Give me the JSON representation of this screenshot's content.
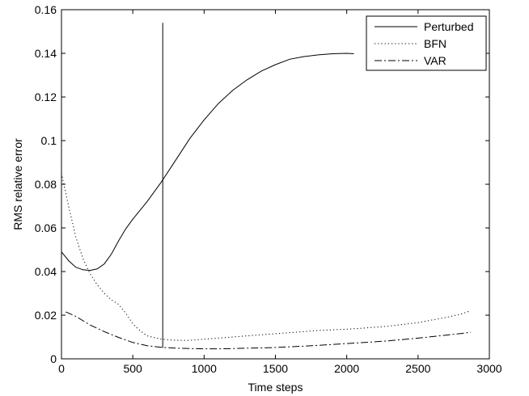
{
  "chart_data": {
    "type": "line",
    "xlabel": "Time steps",
    "ylabel": "RMS relative error",
    "xlim": [
      0,
      3000
    ],
    "ylim": [
      0,
      0.16
    ],
    "x_ticks": [
      0,
      500,
      1000,
      1500,
      2000,
      2500,
      3000
    ],
    "y_ticks": [
      0,
      0.02,
      0.04,
      0.06,
      0.08,
      0.1,
      0.12,
      0.14,
      0.16
    ],
    "x_tick_labels": [
      "0",
      "500",
      "1000",
      "1500",
      "2000",
      "2500",
      "3000"
    ],
    "y_tick_labels": [
      "0",
      "0.02",
      "0.04",
      "0.06",
      "0.08",
      "0.1",
      "0.12",
      "0.14",
      "0.16"
    ],
    "grid": false,
    "legend_position": "top-right",
    "series": [
      {
        "name": "Perturbed",
        "style": "solid",
        "color": "#000000",
        "x": [
          0,
          50,
          100,
          150,
          200,
          250,
          300,
          350,
          400,
          450,
          500,
          600,
          700,
          800,
          900,
          1000,
          1100,
          1200,
          1300,
          1400,
          1500,
          1600,
          1700,
          1800,
          1900,
          2000,
          2050
        ],
        "y": [
          0.049,
          0.045,
          0.042,
          0.0408,
          0.0405,
          0.0412,
          0.0435,
          0.048,
          0.054,
          0.0595,
          0.064,
          0.072,
          0.081,
          0.091,
          0.101,
          0.1095,
          0.117,
          0.123,
          0.1278,
          0.1318,
          0.1348,
          0.1373,
          0.1385,
          0.1393,
          0.1398,
          0.14,
          0.1398
        ]
      },
      {
        "name": "BFN",
        "style": "dotted",
        "color": "#000000",
        "x": [
          0,
          50,
          100,
          150,
          200,
          250,
          300,
          350,
          400,
          450,
          500,
          550,
          600,
          700,
          800,
          900,
          1000,
          1100,
          1200,
          1300,
          1400,
          1500,
          1600,
          1700,
          1800,
          1900,
          2000,
          2100,
          2200,
          2300,
          2400,
          2500,
          2600,
          2700,
          2800,
          2870
        ],
        "y": [
          0.085,
          0.07,
          0.056,
          0.046,
          0.039,
          0.034,
          0.03,
          0.027,
          0.025,
          0.021,
          0.016,
          0.013,
          0.0105,
          0.009,
          0.0085,
          0.0085,
          0.009,
          0.0095,
          0.01,
          0.0105,
          0.011,
          0.0115,
          0.012,
          0.0125,
          0.013,
          0.0133,
          0.0136,
          0.014,
          0.0145,
          0.015,
          0.0158,
          0.0166,
          0.0178,
          0.019,
          0.0205,
          0.022
        ]
      },
      {
        "name": "VAR",
        "style": "dashdot",
        "color": "#000000",
        "x": [
          30,
          100,
          200,
          300,
          400,
          500,
          600,
          700,
          800,
          900,
          1000,
          1100,
          1200,
          1300,
          1400,
          1500,
          1600,
          1700,
          1800,
          1900,
          2000,
          2100,
          2200,
          2300,
          2400,
          2500,
          2600,
          2700,
          2800,
          2870
        ],
        "y": [
          0.0215,
          0.0195,
          0.0155,
          0.0125,
          0.0098,
          0.0075,
          0.006,
          0.0053,
          0.0049,
          0.0047,
          0.0046,
          0.0046,
          0.0047,
          0.0049,
          0.005,
          0.0052,
          0.0055,
          0.0058,
          0.0062,
          0.0066,
          0.007,
          0.0074,
          0.0078,
          0.0083,
          0.0089,
          0.0095,
          0.0102,
          0.0109,
          0.0116,
          0.0122
        ]
      }
    ],
    "vertical_marker": {
      "x": 710,
      "y_start": 0.005,
      "y_end": 0.154
    }
  }
}
